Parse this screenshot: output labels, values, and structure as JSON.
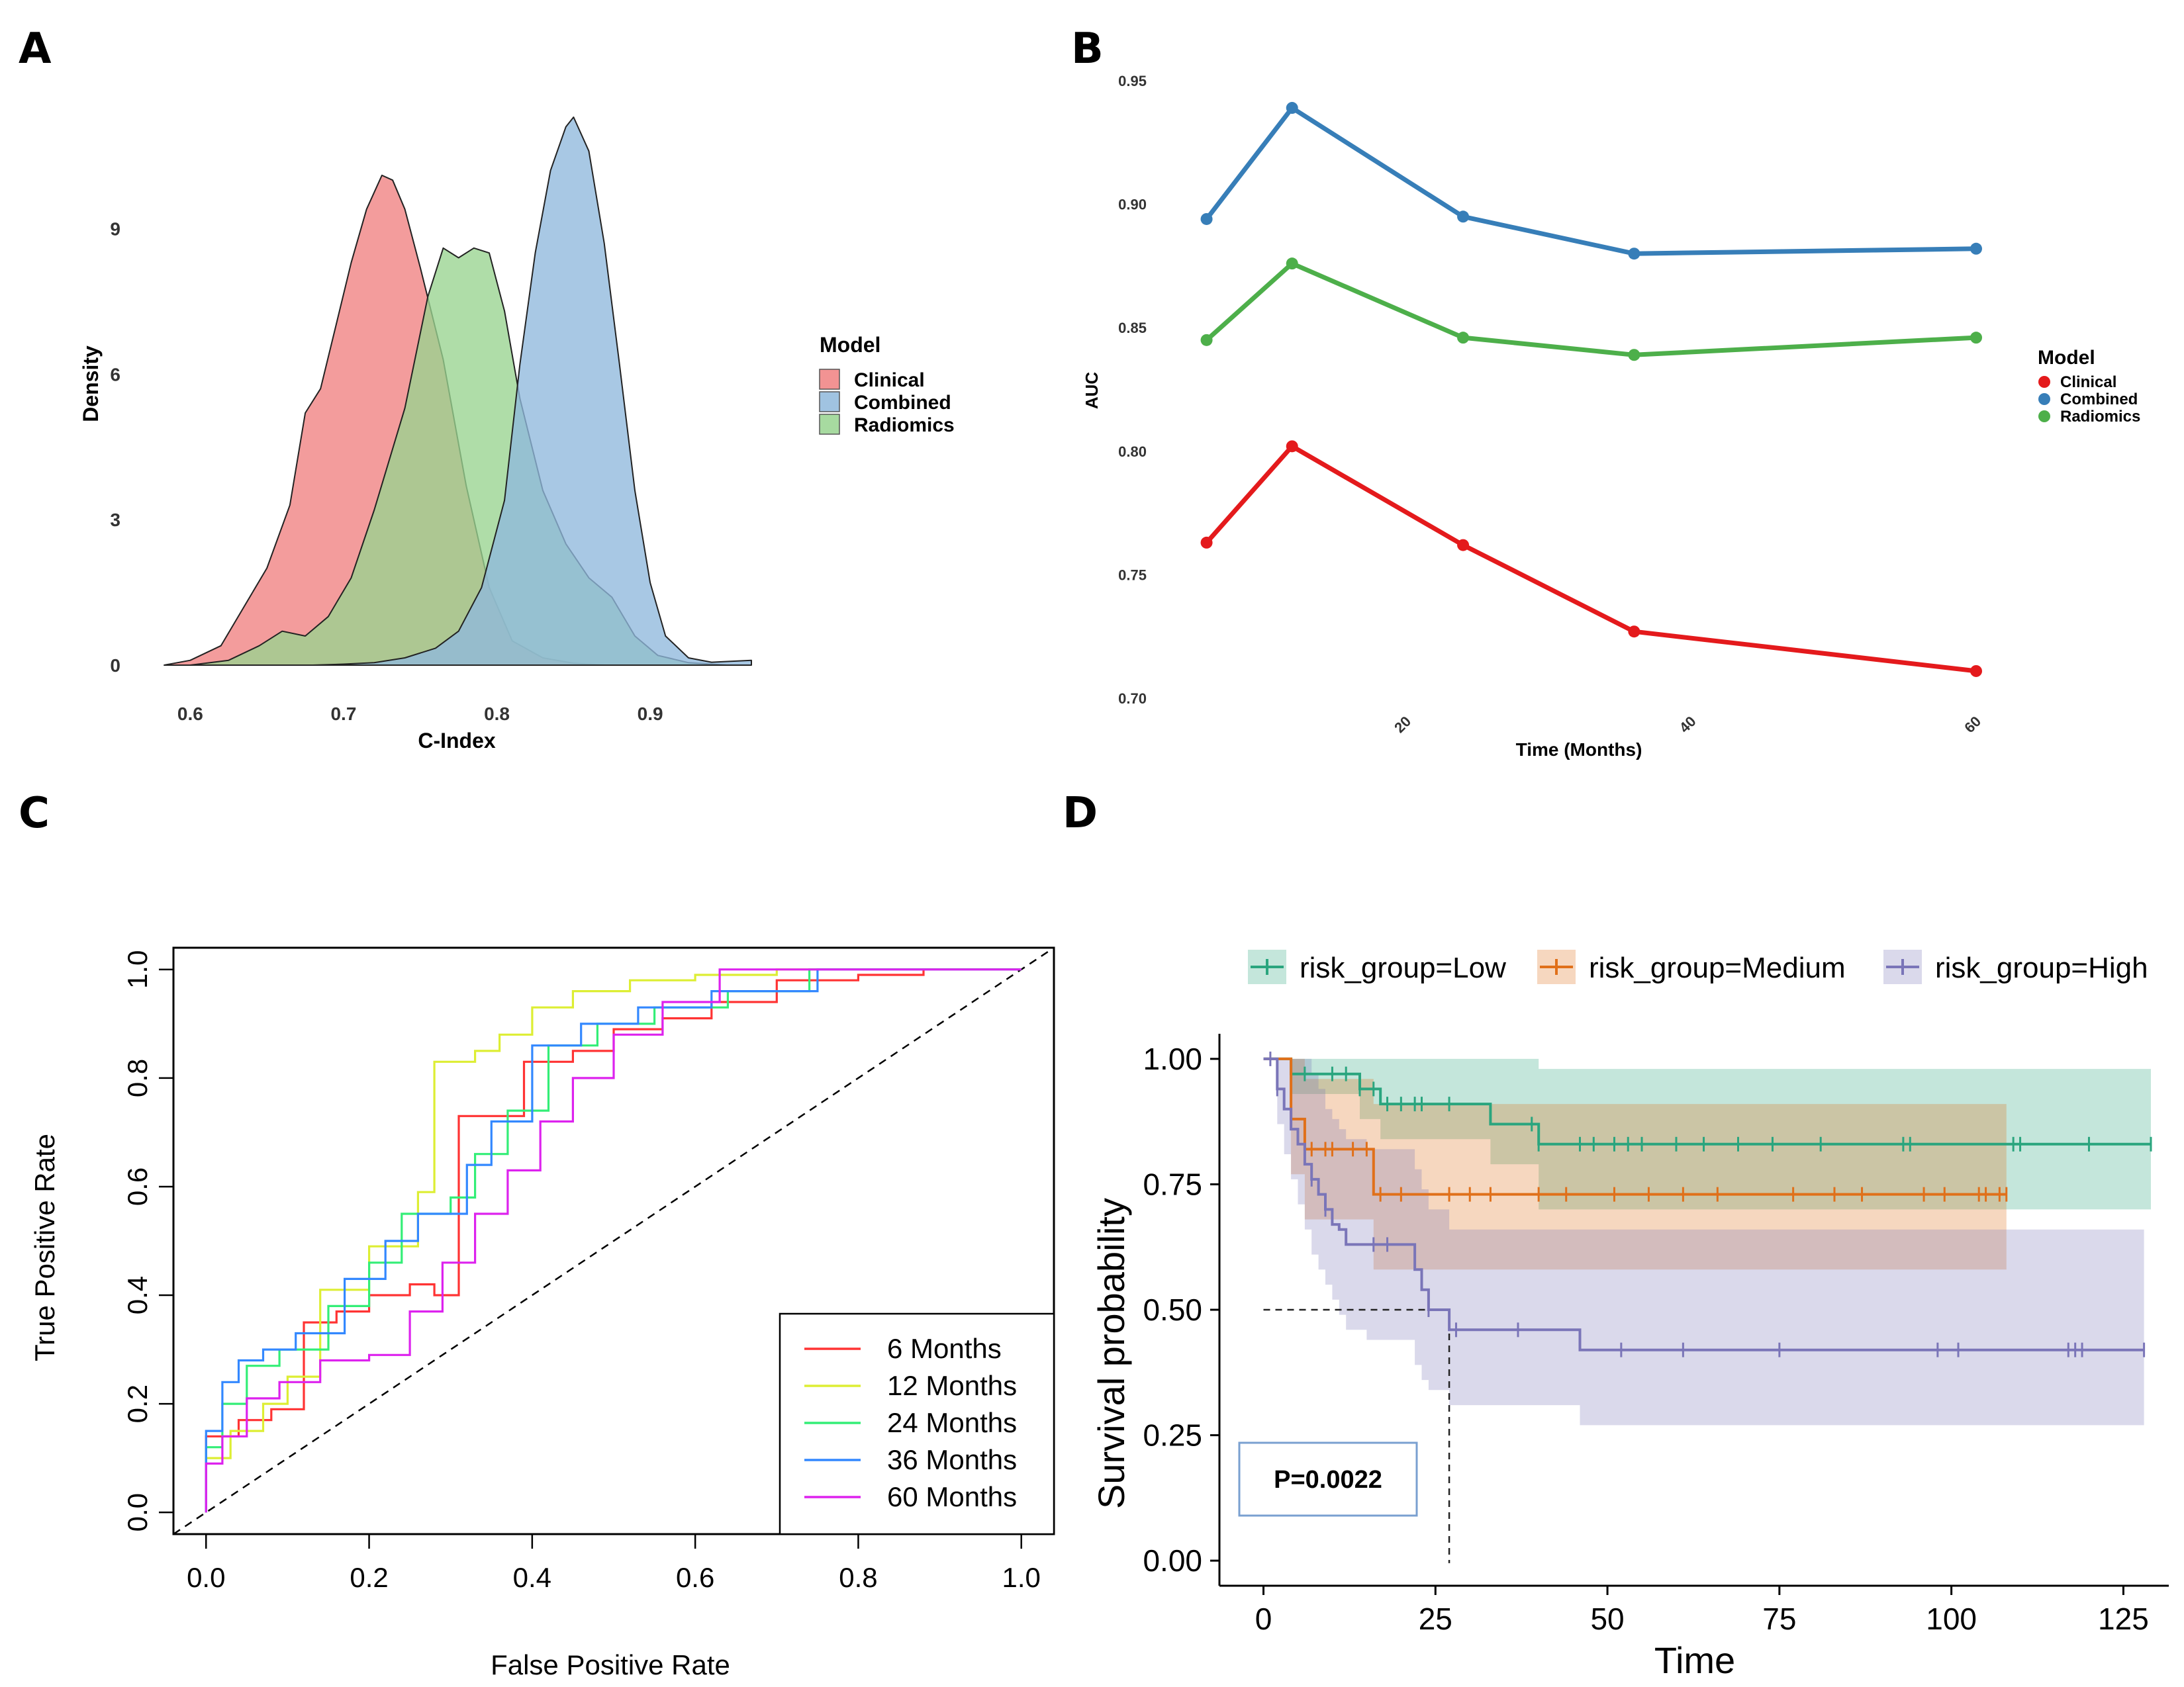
{
  "panels": {
    "a": "A",
    "b": "B",
    "c": "C",
    "d": "D"
  },
  "colors": {
    "clinical": "#e41a1c",
    "combined": "#377eb8",
    "radiomics": "#4daf4a",
    "clinical_fill": "#f08080",
    "combined_fill": "#8fb8dc",
    "radiomics_fill": "#98d48f",
    "m6": "#ff3333",
    "m12": "#ddee33",
    "m24": "#33ee77",
    "m36": "#3388ff",
    "m60": "#dd22ee",
    "low": "#2aa57e",
    "medium": "#e0701a",
    "high": "#7a75b8"
  },
  "chart_data": [
    {
      "panel": "A",
      "type": "area",
      "xlabel": "C-Index",
      "ylabel": "Density",
      "xlim": [
        0.583,
        0.966
      ],
      "ylim": [
        0,
        11.6
      ],
      "xticks": [
        "0.6",
        "0.7",
        "0.8",
        "0.9"
      ],
      "xtick_values": [
        0.6,
        0.7,
        0.8,
        0.9
      ],
      "yticks": [
        "0",
        "3",
        "6",
        "9"
      ],
      "ytick_values": [
        0,
        3,
        6,
        9
      ],
      "legend_title": "Model",
      "legend_position": "right",
      "series": [
        {
          "name": "Clinical",
          "key": "clinical",
          "x": [
            0.583,
            0.6,
            0.62,
            0.635,
            0.65,
            0.665,
            0.675,
            0.685,
            0.695,
            0.705,
            0.715,
            0.725,
            0.732,
            0.74,
            0.75,
            0.765,
            0.78,
            0.795,
            0.81,
            0.83,
            0.85,
            0.87
          ],
          "y": [
            0,
            0.1,
            0.4,
            1.2,
            2.0,
            3.3,
            5.2,
            5.7,
            7.0,
            8.3,
            9.4,
            10.1,
            10.0,
            9.4,
            8.2,
            6.3,
            3.7,
            1.6,
            0.5,
            0.15,
            0.04,
            0
          ]
        },
        {
          "name": "Combined",
          "key": "combined",
          "x": [
            0.6,
            0.62,
            0.64,
            0.66,
            0.68,
            0.7,
            0.72,
            0.74,
            0.76,
            0.775,
            0.79,
            0.805,
            0.815,
            0.825,
            0.835,
            0.845,
            0.85,
            0.86,
            0.87,
            0.88,
            0.89,
            0.9,
            0.91,
            0.925,
            0.94,
            0.966
          ],
          "y": [
            0,
            0,
            0,
            0,
            0,
            0.02,
            0.05,
            0.15,
            0.35,
            0.7,
            1.6,
            3.4,
            6.2,
            8.5,
            10.2,
            11.1,
            11.3,
            10.6,
            8.7,
            6.2,
            3.6,
            1.7,
            0.6,
            0.15,
            0.06,
            0.1
          ]
        },
        {
          "name": "Radiomics",
          "key": "radiomics",
          "x": [
            0.6,
            0.625,
            0.645,
            0.66,
            0.675,
            0.69,
            0.705,
            0.72,
            0.74,
            0.755,
            0.765,
            0.775,
            0.785,
            0.795,
            0.805,
            0.815,
            0.83,
            0.845,
            0.86,
            0.875,
            0.89,
            0.905,
            0.925,
            0.95
          ],
          "y": [
            0,
            0.1,
            0.4,
            0.7,
            0.6,
            1.0,
            1.8,
            3.2,
            5.3,
            7.6,
            8.6,
            8.4,
            8.6,
            8.5,
            7.3,
            5.5,
            3.6,
            2.5,
            1.8,
            1.4,
            0.6,
            0.2,
            0.05,
            0
          ]
        }
      ]
    },
    {
      "panel": "B",
      "type": "line",
      "xlabel": "Time (Months)",
      "ylabel": "AUC",
      "xlim": [
        3,
        60
      ],
      "ylim": [
        0.7,
        0.95
      ],
      "xticks": [
        "20",
        "40",
        "60"
      ],
      "xtick_values": [
        20,
        40,
        60
      ],
      "yticks": [
        "0.70",
        "0.75",
        "0.80",
        "0.85",
        "0.90",
        "0.95"
      ],
      "ytick_values": [
        0.7,
        0.75,
        0.8,
        0.85,
        0.9,
        0.95
      ],
      "legend_title": "Model",
      "legend_position": "right",
      "x": [
        6,
        12,
        24,
        36,
        60
      ],
      "series": [
        {
          "name": "Clinical",
          "key": "clinical",
          "values": [
            0.763,
            0.802,
            0.762,
            0.727,
            0.711
          ]
        },
        {
          "name": "Combined",
          "key": "combined",
          "values": [
            0.894,
            0.939,
            0.895,
            0.88,
            0.882
          ]
        },
        {
          "name": "Radiomics",
          "key": "radiomics",
          "values": [
            0.845,
            0.876,
            0.846,
            0.839,
            0.846
          ]
        }
      ]
    },
    {
      "panel": "C",
      "type": "line",
      "xlabel": "False Positive Rate",
      "ylabel": "True Positive Rate",
      "xlim": [
        -0.04,
        1.04
      ],
      "ylim": [
        -0.04,
        1.04
      ],
      "xticks": [
        "0.0",
        "0.2",
        "0.4",
        "0.6",
        "0.8",
        "1.0"
      ],
      "xtick_values": [
        0,
        0.2,
        0.4,
        0.6,
        0.8,
        1.0
      ],
      "yticks": [
        "0.0",
        "0.2",
        "0.4",
        "0.6",
        "0.8",
        "1.0"
      ],
      "ytick_values": [
        0,
        0.2,
        0.4,
        0.6,
        0.8,
        1.0
      ],
      "legend_position": "bottom-right",
      "series": [
        {
          "name": "6 Months",
          "key": "m6",
          "x": [
            0,
            0,
            0.04,
            0.04,
            0.08,
            0.08,
            0.12,
            0.12,
            0.16,
            0.16,
            0.2,
            0.2,
            0.25,
            0.25,
            0.28,
            0.28,
            0.31,
            0.31,
            0.34,
            0.34,
            0.39,
            0.39,
            0.45,
            0.45,
            0.5,
            0.5,
            0.56,
            0.56,
            0.62,
            0.62,
            0.7,
            0.7,
            0.8,
            0.8,
            0.88,
            0.88,
            1
          ],
          "y": [
            0,
            0.14,
            0.14,
            0.17,
            0.17,
            0.19,
            0.19,
            0.35,
            0.35,
            0.37,
            0.37,
            0.4,
            0.4,
            0.42,
            0.42,
            0.4,
            0.4,
            0.73,
            0.73,
            0.73,
            0.73,
            0.83,
            0.83,
            0.85,
            0.85,
            0.89,
            0.89,
            0.91,
            0.91,
            0.94,
            0.94,
            0.98,
            0.98,
            0.99,
            0.99,
            1.0,
            1.0
          ]
        },
        {
          "name": "12 Months",
          "key": "m12",
          "x": [
            0,
            0,
            0.03,
            0.03,
            0.07,
            0.07,
            0.1,
            0.1,
            0.14,
            0.14,
            0.2,
            0.2,
            0.26,
            0.26,
            0.28,
            0.28,
            0.33,
            0.33,
            0.36,
            0.36,
            0.4,
            0.4,
            0.45,
            0.45,
            0.52,
            0.52,
            0.6,
            0.6,
            0.7,
            0.7,
            1
          ],
          "y": [
            0,
            0.1,
            0.1,
            0.15,
            0.15,
            0.2,
            0.2,
            0.25,
            0.25,
            0.41,
            0.41,
            0.49,
            0.49,
            0.59,
            0.59,
            0.83,
            0.83,
            0.85,
            0.85,
            0.88,
            0.88,
            0.93,
            0.93,
            0.96,
            0.96,
            0.98,
            0.98,
            0.99,
            0.99,
            1.0,
            1.0
          ]
        },
        {
          "name": "24 Months",
          "key": "m24",
          "x": [
            0,
            0,
            0.02,
            0.02,
            0.05,
            0.05,
            0.09,
            0.09,
            0.15,
            0.15,
            0.2,
            0.2,
            0.24,
            0.24,
            0.3,
            0.3,
            0.33,
            0.33,
            0.37,
            0.37,
            0.42,
            0.42,
            0.48,
            0.48,
            0.55,
            0.55,
            0.64,
            0.64,
            0.74,
            0.74,
            1
          ],
          "y": [
            0,
            0.12,
            0.12,
            0.2,
            0.2,
            0.27,
            0.27,
            0.3,
            0.3,
            0.38,
            0.38,
            0.46,
            0.46,
            0.55,
            0.55,
            0.58,
            0.58,
            0.66,
            0.66,
            0.74,
            0.74,
            0.86,
            0.86,
            0.9,
            0.9,
            0.93,
            0.93,
            0.96,
            0.96,
            1.0,
            1.0
          ]
        },
        {
          "name": "36 Months",
          "key": "m36",
          "x": [
            0,
            0,
            0.02,
            0.02,
            0.04,
            0.04,
            0.07,
            0.07,
            0.11,
            0.11,
            0.17,
            0.17,
            0.22,
            0.22,
            0.26,
            0.26,
            0.32,
            0.32,
            0.35,
            0.35,
            0.4,
            0.4,
            0.46,
            0.46,
            0.53,
            0.53,
            0.62,
            0.62,
            0.75,
            0.75,
            1
          ],
          "y": [
            0,
            0.15,
            0.15,
            0.24,
            0.24,
            0.28,
            0.28,
            0.3,
            0.3,
            0.33,
            0.33,
            0.43,
            0.43,
            0.5,
            0.5,
            0.55,
            0.55,
            0.64,
            0.64,
            0.72,
            0.72,
            0.86,
            0.86,
            0.9,
            0.9,
            0.93,
            0.93,
            0.96,
            0.96,
            1.0,
            1.0
          ]
        },
        {
          "name": "60 Months",
          "key": "m60",
          "x": [
            0,
            0,
            0.02,
            0.02,
            0.05,
            0.05,
            0.09,
            0.09,
            0.14,
            0.14,
            0.2,
            0.2,
            0.25,
            0.25,
            0.29,
            0.29,
            0.33,
            0.33,
            0.37,
            0.37,
            0.41,
            0.41,
            0.45,
            0.45,
            0.5,
            0.5,
            0.56,
            0.56,
            0.63,
            0.63,
            1
          ],
          "y": [
            0,
            0.09,
            0.09,
            0.14,
            0.14,
            0.21,
            0.21,
            0.24,
            0.24,
            0.28,
            0.28,
            0.29,
            0.29,
            0.37,
            0.37,
            0.46,
            0.46,
            0.55,
            0.55,
            0.63,
            0.63,
            0.72,
            0.72,
            0.8,
            0.8,
            0.88,
            0.88,
            0.94,
            0.94,
            1.0,
            1.0
          ]
        }
      ]
    },
    {
      "panel": "D",
      "type": "line",
      "xlabel": "Time",
      "ylabel": "Survival probability",
      "xlim": [
        -6.4,
        131.6
      ],
      "ylim": [
        -0.05,
        1.05
      ],
      "xticks": [
        "0",
        "25",
        "50",
        "75",
        "100",
        "125"
      ],
      "xtick_values": [
        0,
        25,
        50,
        75,
        100,
        125
      ],
      "yticks": [
        "0.00",
        "0.25",
        "0.50",
        "0.75",
        "1.00"
      ],
      "ytick_values": [
        0,
        0.25,
        0.5,
        0.75,
        1.0
      ],
      "legend_position": "top",
      "pvalue": "P=0.0022",
      "median_survival": {
        "group": "High",
        "x": 27,
        "y": 0.5
      },
      "series": [
        {
          "name": "risk_group=Low",
          "key": "low",
          "time": [
            0,
            4,
            7,
            14,
            17,
            33,
            40,
            129
          ],
          "surv": [
            1.0,
            0.97,
            0.97,
            0.94,
            0.91,
            0.87,
            0.83,
            0.83
          ],
          "lower": [
            1.0,
            0.93,
            0.93,
            0.88,
            0.84,
            0.79,
            0.7,
            0.7
          ],
          "upper": [
            1.0,
            1.0,
            1.0,
            1.0,
            1.0,
            1.0,
            0.98,
            0.98
          ],
          "censor_times": [
            6,
            10,
            12,
            14,
            16,
            18,
            20,
            22,
            23,
            27,
            39,
            40,
            46,
            48,
            51,
            53,
            55,
            60,
            64,
            69,
            74,
            81,
            93,
            94,
            109,
            110,
            120,
            129
          ]
        },
        {
          "name": "risk_group=Medium",
          "key": "medium",
          "time": [
            0,
            4,
            6,
            16,
            108
          ],
          "surv": [
            1.0,
            0.88,
            0.82,
            0.73,
            0.73
          ],
          "lower": [
            1.0,
            0.77,
            0.68,
            0.58,
            0.58
          ],
          "upper": [
            1.0,
            1.0,
            0.96,
            0.91,
            0.91
          ],
          "censor_times": [
            4,
            7,
            9,
            10,
            13,
            15,
            17,
            20,
            27,
            30,
            33,
            40,
            44,
            51,
            56,
            61,
            66,
            77,
            83,
            87,
            96,
            99,
            104,
            105,
            107,
            108
          ]
        },
        {
          "name": "risk_group=High",
          "key": "high",
          "time": [
            0,
            2,
            3,
            4,
            5,
            6,
            7,
            8,
            9,
            10,
            11,
            12,
            15,
            22,
            23,
            24,
            27,
            46,
            128
          ],
          "surv": [
            1.0,
            0.94,
            0.9,
            0.86,
            0.83,
            0.79,
            0.76,
            0.73,
            0.7,
            0.67,
            0.66,
            0.63,
            0.63,
            0.58,
            0.54,
            0.5,
            0.46,
            0.42,
            0.42
          ],
          "lower": [
            1.0,
            0.87,
            0.81,
            0.76,
            0.71,
            0.66,
            0.61,
            0.58,
            0.55,
            0.52,
            0.49,
            0.46,
            0.44,
            0.39,
            0.36,
            0.34,
            0.31,
            0.27,
            0.27
          ],
          "upper": [
            1.0,
            1.0,
            1.0,
            1.0,
            1.0,
            1.0,
            0.97,
            0.94,
            0.9,
            0.88,
            0.86,
            0.84,
            0.82,
            0.78,
            0.74,
            0.7,
            0.66,
            0.66,
            0.66
          ],
          "censor_times": [
            1,
            2,
            7,
            9,
            16,
            18,
            24,
            28,
            37,
            52,
            61,
            75,
            98,
            101,
            117,
            118,
            119,
            128
          ]
        }
      ]
    }
  ]
}
